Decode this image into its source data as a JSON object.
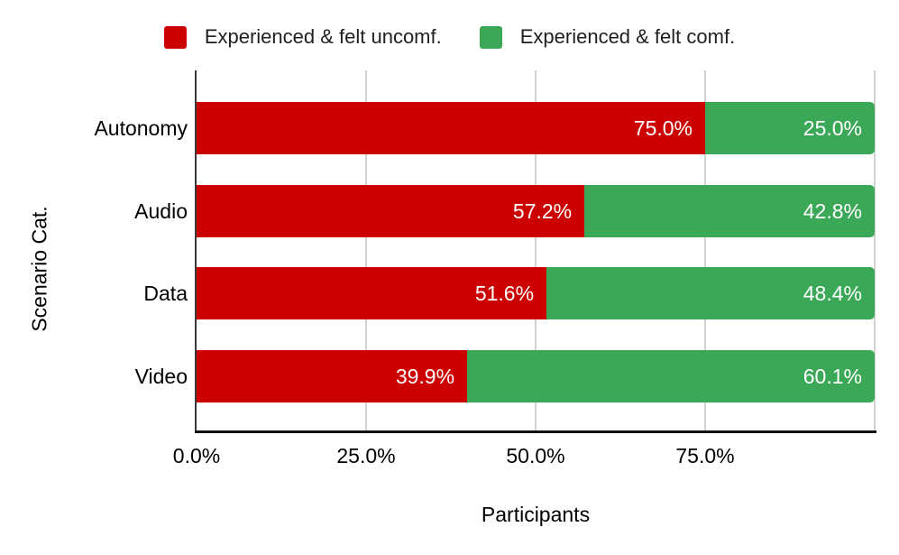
{
  "chart_data": {
    "type": "bar",
    "orientation": "horizontal",
    "stacked": true,
    "stack_unit": "percent",
    "xlabel": "Participants",
    "ylabel": "Scenario Cat.",
    "categories": [
      "Autonomy",
      "Audio",
      "Data",
      "Video"
    ],
    "series": [
      {
        "name": "Experienced & felt uncomf.",
        "color": "#CC0000",
        "values": [
          75.0,
          57.2,
          51.6,
          39.9
        ]
      },
      {
        "name": "Experienced & felt comf.",
        "color": "#3BA858",
        "values": [
          25.0,
          42.8,
          48.4,
          60.1
        ]
      }
    ],
    "bar_labels": [
      [
        "75.0%",
        "25.0%"
      ],
      [
        "57.2%",
        "42.8%"
      ],
      [
        "51.6%",
        "48.4%"
      ],
      [
        "39.9%",
        "60.1%"
      ]
    ],
    "x_ticks": [
      "0.0%",
      "25.0%",
      "50.0%",
      "75.0%"
    ],
    "xlim": [
      0,
      100
    ],
    "grid": true,
    "gridline_positions_pct": [
      25,
      50,
      75,
      100
    ],
    "legend_position": "top",
    "colors": {
      "grid": "#d2d2d2",
      "axis": "#333333",
      "bar_label_text": "#ffffff",
      "text": "#000000",
      "background": "#ffffff"
    }
  }
}
